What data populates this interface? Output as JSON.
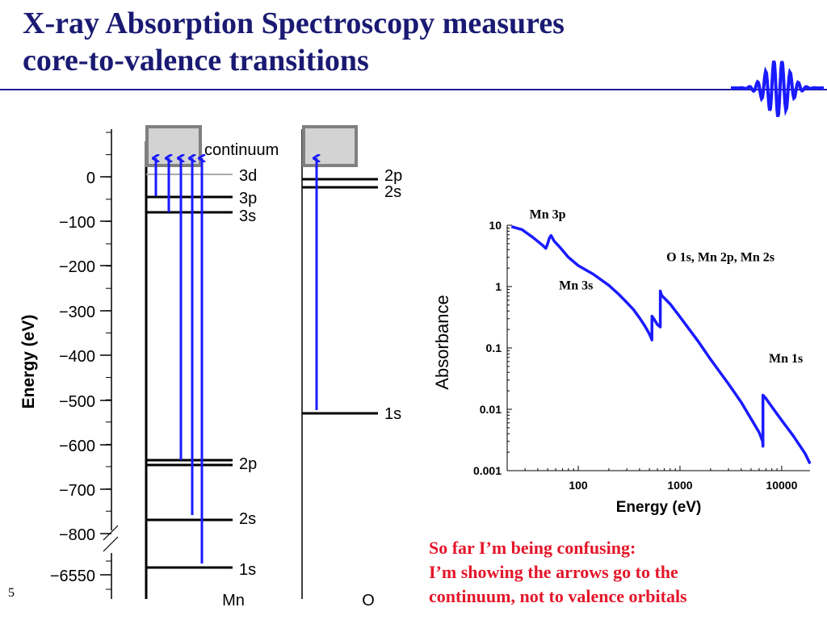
{
  "title_lines": [
    "X-ray Absorption Spectroscopy measures",
    "core-to-valence transitions"
  ],
  "page_number": "5",
  "note_lines": [
    "So far I’m being confusing:",
    "I’m showing the arrows go to the",
    "continuum, not to valence orbitals"
  ],
  "colors": {
    "title": "#1a1a73",
    "accent": "#2020a0",
    "arrow": "#1a1aff",
    "note": "#e4162a",
    "continuum_fill": "#d3d3d3",
    "continuum_border": "#808080"
  },
  "icons": {
    "logo": "xray-wave-icon"
  },
  "energy_diagram": {
    "axis_label": "Energy (eV)",
    "ticks": [
      {
        "label": "0",
        "value": 0
      },
      {
        "label": "−100",
        "value": -100
      },
      {
        "label": "−200",
        "value": -200
      },
      {
        "label": "−300",
        "value": -300
      },
      {
        "label": "−400",
        "value": -400
      },
      {
        "label": "−500",
        "value": -500
      },
      {
        "label": "−600",
        "value": -600
      },
      {
        "label": "−700",
        "value": -700
      },
      {
        "label": "−800",
        "value": -800
      },
      {
        "label": "−6550",
        "value": -6550
      }
    ],
    "continuum_label": "continuum",
    "mn": {
      "label": "Mn",
      "levels": [
        {
          "name": "3d",
          "energy": 0
        },
        {
          "name": "3p",
          "energy": -47
        },
        {
          "name": "3s",
          "energy": -82
        },
        {
          "name": "2p",
          "energy": -645
        },
        {
          "name": "2s",
          "energy": -767
        },
        {
          "name": "1s",
          "energy": -6539
        }
      ]
    },
    "o": {
      "label": "O",
      "levels": [
        {
          "name": "2p",
          "energy": -3
        },
        {
          "name": "2s",
          "energy": -23
        },
        {
          "name": "1s",
          "energy": -530
        }
      ]
    }
  },
  "chart_data": {
    "type": "line",
    "xlabel": "Energy (eV)",
    "ylabel": "Absorbance",
    "x_scale": "log",
    "y_scale": "log",
    "xlim": [
      20,
      19000
    ],
    "ylim": [
      0.001,
      10
    ],
    "x_ticks": [
      {
        "label": "100",
        "value": 100
      },
      {
        "label": "1000",
        "value": 1000
      },
      {
        "label": "10000",
        "value": 10000
      }
    ],
    "y_ticks": [
      {
        "label": "10",
        "value": 10
      },
      {
        "label": "1",
        "value": 1
      },
      {
        "label": "0.1",
        "value": 0.1
      },
      {
        "label": "0.01",
        "value": 0.01
      },
      {
        "label": "0.001",
        "value": 0.001
      }
    ],
    "series": [
      {
        "color": "#1a1aff",
        "x": [
          22,
          28,
          36,
          44,
          48,
          50,
          52,
          54,
          58,
          65,
          80,
          100,
          140,
          200,
          250,
          300,
          350,
          400,
          450,
          500,
          530,
          531,
          560,
          600,
          640,
          641,
          660,
          700,
          800,
          1000,
          1500,
          2000,
          3000,
          4000,
          5000,
          6000,
          6500,
          6539,
          6540,
          7000,
          8000,
          10000,
          13000,
          17000,
          19000
        ],
        "y": [
          9.5,
          8.5,
          6.3,
          4.8,
          4.2,
          5.0,
          6.2,
          6.8,
          5.5,
          4.5,
          3.0,
          2.2,
          1.6,
          1.05,
          0.75,
          0.55,
          0.42,
          0.31,
          0.23,
          0.17,
          0.135,
          0.33,
          0.29,
          0.24,
          0.22,
          0.85,
          0.72,
          0.65,
          0.52,
          0.32,
          0.13,
          0.065,
          0.026,
          0.013,
          0.007,
          0.0042,
          0.003,
          0.0025,
          0.017,
          0.015,
          0.011,
          0.0066,
          0.0037,
          0.0019,
          0.0013
        ]
      }
    ],
    "annotations": [
      {
        "text": "Mn 3p",
        "x": 50,
        "y": 13
      },
      {
        "text": "O 1s, Mn 2p, Mn 2s",
        "x": 2500,
        "y": 2.6
      },
      {
        "text": "Mn 3s",
        "x": 95,
        "y": 0.9
      },
      {
        "text": "Mn 1s",
        "x": 11000,
        "y": 0.058
      }
    ]
  }
}
